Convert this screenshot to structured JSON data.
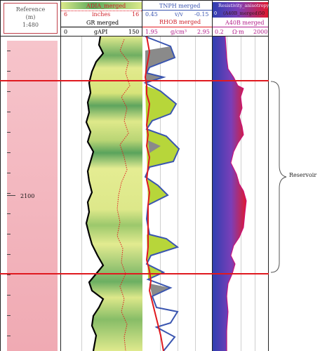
{
  "reference": {
    "title": "Reference",
    "unit": "(m)",
    "scale": "1:480",
    "depth_label": "2100"
  },
  "track_gr": {
    "adia_curve": "ADIA_merged",
    "adia_min": "6",
    "adia_unit": "inches",
    "adia_max": "16",
    "gr_curve": "GR merged",
    "gr_min": "0",
    "gr_unit": "gAPI",
    "gr_max": "150"
  },
  "track_neutron": {
    "tnph_curve": "TNPH merged",
    "tnph_min": "0.45",
    "tnph_unit": "v/v",
    "tnph_max": "-0.15",
    "rhob_curve": "RHOB merged",
    "rhob_min": "1.95",
    "rhob_unit": "g/cm³",
    "rhob_max": "2.95"
  },
  "track_resistivity": {
    "aniso_curve": "Resistivity_anisotropy",
    "aniso_min": "0",
    "aniso_fill": "(A40B_merged)",
    "aniso_max": "50",
    "a40b_curve": "A40B merged",
    "a40b_min": "0.2",
    "a40b_unit": "Ω·m",
    "a40b_max": "2000"
  },
  "annotation": {
    "reservoir_label": "Reservoir"
  },
  "colors": {
    "gr_fill": "#d9e86a",
    "gr_line": "#000000",
    "adia_line": "#e0191f",
    "tnph_line": "#3a55b0",
    "rhob_line": "#e0191f",
    "crossover_fill": "#b7d63a",
    "resistivity_fill": "#e0192f",
    "resistivity_base": "#2f3fb0",
    "zone_line": "#e0191f"
  }
}
